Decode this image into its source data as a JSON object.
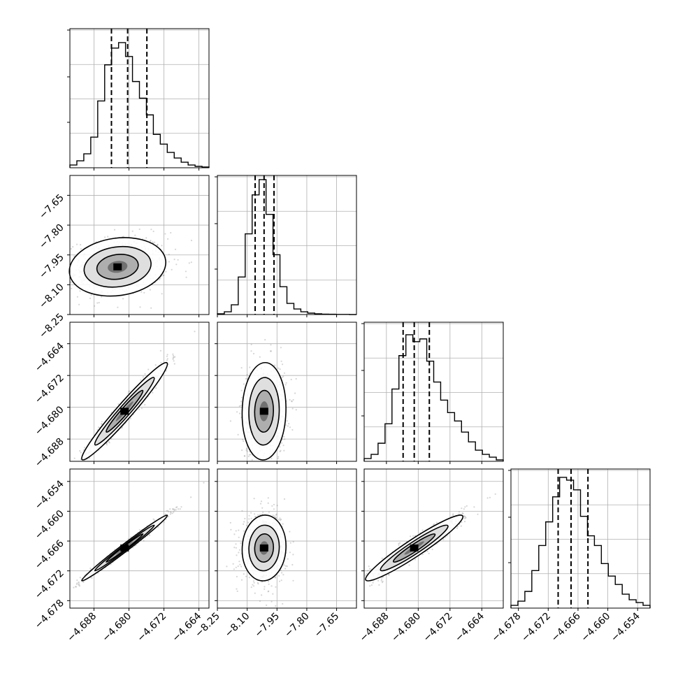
{
  "colors": {
    "line": "#000000",
    "grid": "#b0b0b0",
    "scatter": "#8a8a8a",
    "background": "#ffffff"
  },
  "chart_data": {
    "type": "corner",
    "grid": true,
    "parameters": [
      {
        "range": [
          -4.6935,
          -4.6617
        ],
        "ticks": [
          "−4.688",
          "−4.680",
          "−4.672",
          "−4.664"
        ],
        "tick_values": [
          -4.688,
          -4.68,
          -4.672,
          -4.664
        ],
        "quantiles": [
          -4.684,
          -4.6803,
          -4.6759
        ]
      },
      {
        "range": [
          -8.25,
          -7.55
        ],
        "ticks": [
          "−8.25",
          "−8.10",
          "−7.95",
          "−7.80",
          "−7.65"
        ],
        "tick_values": [
          -8.25,
          -8.1,
          -7.95,
          -7.8,
          -7.65
        ],
        "quantiles": [
          -8.06,
          -8.015,
          -7.965
        ]
      },
      {
        "range": [
          -4.6936,
          -4.6586
        ],
        "ticks": [
          "−4.688",
          "−4.680",
          "−4.672",
          "−4.664"
        ],
        "tick_values": [
          -4.688,
          -4.68,
          -4.672,
          -4.664
        ],
        "quantiles": [
          -4.6838,
          -4.681,
          -4.6772
        ]
      },
      {
        "range": [
          -4.6795,
          -4.6515
        ],
        "ticks": [
          "−4.678",
          "−4.672",
          "−4.666",
          "−4.660",
          "−4.654"
        ],
        "tick_values": [
          -4.678,
          -4.672,
          -4.666,
          -4.66,
          -4.654
        ],
        "quantiles": [
          -4.67,
          -4.6674,
          -4.664
        ]
      }
    ],
    "histograms": [
      {
        "parameter": 0,
        "bins": 20,
        "counts": [
          0.02,
          0.05,
          0.1,
          0.22,
          0.48,
          0.74,
          0.86,
          0.9,
          0.8,
          0.62,
          0.5,
          0.38,
          0.24,
          0.17,
          0.11,
          0.07,
          0.04,
          0.02,
          0.01,
          0.005
        ]
      },
      {
        "parameter": 1,
        "bins": 20,
        "counts": [
          0.005,
          0.02,
          0.07,
          0.27,
          0.58,
          0.86,
          0.97,
          0.72,
          0.43,
          0.2,
          0.08,
          0.04,
          0.02,
          0.01,
          0.005,
          0.003,
          0.002,
          0.001,
          0.001,
          0.0
        ]
      },
      {
        "parameter": 2,
        "bins": 20,
        "counts": [
          0.02,
          0.05,
          0.13,
          0.27,
          0.52,
          0.76,
          0.91,
          0.86,
          0.88,
          0.72,
          0.57,
          0.44,
          0.35,
          0.29,
          0.21,
          0.14,
          0.08,
          0.05,
          0.03,
          0.01
        ]
      },
      {
        "parameter": 3,
        "bins": 20,
        "counts": [
          0.02,
          0.05,
          0.12,
          0.27,
          0.45,
          0.62,
          0.8,
          0.94,
          0.92,
          0.85,
          0.66,
          0.52,
          0.45,
          0.32,
          0.23,
          0.17,
          0.1,
          0.06,
          0.04,
          0.02
        ]
      }
    ],
    "pairs": [
      {
        "x": 0,
        "y": 1,
        "center": [
          -4.6826,
          -8.01
        ],
        "sd": [
          0.0045,
          0.06
        ],
        "corr": 0.15
      },
      {
        "x": 0,
        "y": 2,
        "center": [
          -4.681,
          -4.681
        ],
        "sd": [
          0.004,
          0.005
        ],
        "corr": 0.97
      },
      {
        "x": 1,
        "y": 2,
        "center": [
          -8.015,
          -4.681
        ],
        "sd": [
          0.045,
          0.005
        ],
        "corr": 0.05
      },
      {
        "x": 0,
        "y": 3,
        "center": [
          -4.681,
          -4.6674
        ],
        "sd": [
          0.004,
          0.0027
        ],
        "corr": 0.99
      },
      {
        "x": 1,
        "y": 3,
        "center": [
          -8.015,
          -4.6674
        ],
        "sd": [
          0.045,
          0.0027
        ],
        "corr": 0.05
      },
      {
        "x": 2,
        "y": 3,
        "center": [
          -4.681,
          -4.6674
        ],
        "sd": [
          0.005,
          0.0027
        ],
        "corr": 0.95
      }
    ]
  }
}
